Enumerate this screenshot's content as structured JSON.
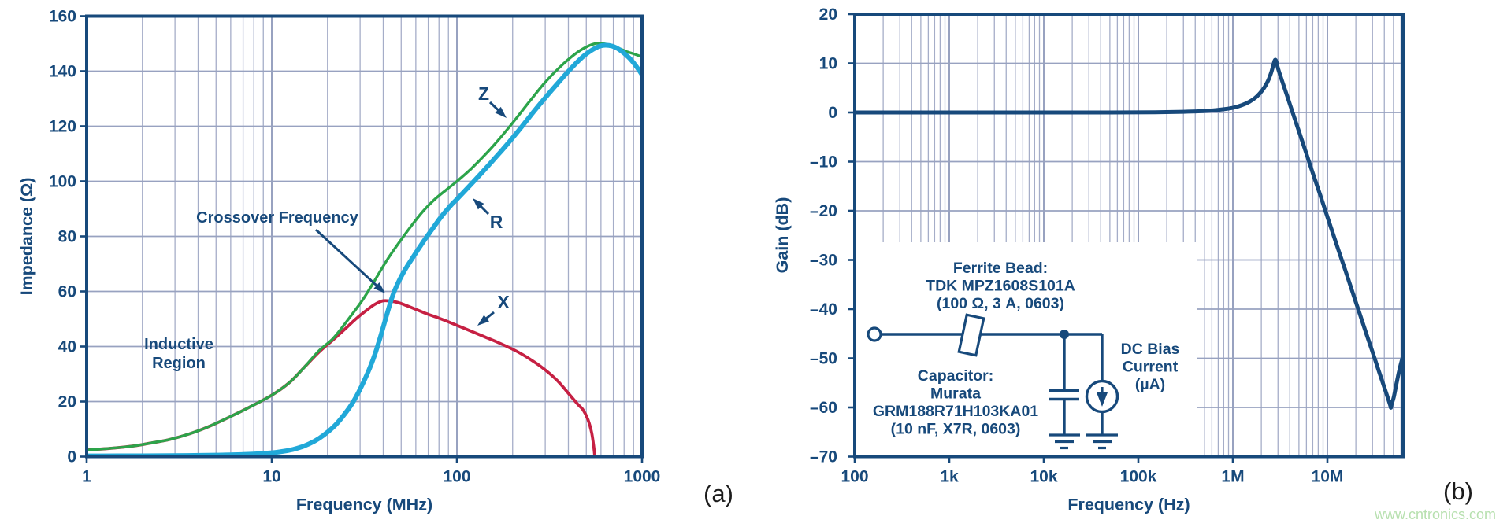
{
  "colors": {
    "navy": "#17497b",
    "grid_minor": "#a5adc8",
    "grid_major": "#98a2c0",
    "green": "#2ca44a",
    "cyan": "#21a8d8",
    "red": "#c62043",
    "caption_black": "#1c1c1c",
    "watermark_green": "#b7e0af"
  },
  "caption_a": "(a)",
  "caption_b": "(b)",
  "watermark": {
    "text": "www.cntronics.com"
  },
  "chart_data": [
    {
      "id": "impedance",
      "type": "line",
      "title": "",
      "xlabel": "Frequency (MHz)",
      "ylabel": "Impedance (Ω)",
      "x_scale": "log",
      "xlim": [
        1,
        1000
      ],
      "ylim": [
        0,
        160
      ],
      "x_tick_labels": [
        "1",
        "10",
        "100",
        "1000"
      ],
      "x_tick_values": [
        1,
        10,
        100,
        1000
      ],
      "y_tick_labels": [
        "0",
        "20",
        "40",
        "60",
        "80",
        "100",
        "120",
        "140",
        "160"
      ],
      "y_tick_values": [
        0,
        20,
        40,
        60,
        80,
        100,
        120,
        140,
        160
      ],
      "grid": true,
      "legend": "inline-arrow-labels",
      "series": [
        {
          "name": "Z",
          "color_key": "green",
          "points": [
            [
              1,
              2.4
            ],
            [
              1.4,
              3.1
            ],
            [
              1.8,
              3.9
            ],
            [
              2.2,
              4.9
            ],
            [
              2.8,
              6.2
            ],
            [
              3.6,
              8.3
            ],
            [
              4.6,
              11
            ],
            [
              6,
              14.6
            ],
            [
              7.5,
              17.8
            ],
            [
              10,
              22.3
            ],
            [
              12.5,
              27
            ],
            [
              15,
              32.5
            ],
            [
              18,
              38.5
            ],
            [
              21.5,
              43
            ],
            [
              26,
              50
            ],
            [
              31,
              57
            ],
            [
              36,
              64
            ],
            [
              42,
              71.5
            ],
            [
              49,
              78
            ],
            [
              57,
              84
            ],
            [
              66,
              89.3
            ],
            [
              76,
              93.5
            ],
            [
              88,
              97
            ],
            [
              100,
              100
            ],
            [
              120,
              104.7
            ],
            [
              145,
              110.3
            ],
            [
              175,
              116.5
            ],
            [
              210,
              123
            ],
            [
              250,
              129.5
            ],
            [
              300,
              136
            ],
            [
              360,
              141.5
            ],
            [
              430,
              146
            ],
            [
              500,
              148.8
            ],
            [
              570,
              150.1
            ],
            [
              640,
              149.8
            ],
            [
              720,
              148.8
            ],
            [
              820,
              147.2
            ],
            [
              910,
              146.2
            ],
            [
              1000,
              145.2
            ]
          ]
        },
        {
          "name": "X",
          "color_key": "red",
          "points": [
            [
              1,
              2.4
            ],
            [
              1.4,
              3.1
            ],
            [
              1.8,
              3.9
            ],
            [
              2.2,
              4.9
            ],
            [
              2.8,
              6.2
            ],
            [
              3.6,
              8.3
            ],
            [
              4.6,
              11
            ],
            [
              6,
              14.6
            ],
            [
              7.5,
              17.8
            ],
            [
              10,
              22.3
            ],
            [
              12.5,
              27
            ],
            [
              15,
              32.5
            ],
            [
              18,
              38
            ],
            [
              21.5,
              42.5
            ],
            [
              25,
              46.5
            ],
            [
              29,
              50.5
            ],
            [
              33,
              53.5
            ],
            [
              36,
              55.3
            ],
            [
              40,
              56.6
            ],
            [
              45,
              56.4
            ],
            [
              50,
              55.6
            ],
            [
              58,
              53.9
            ],
            [
              68,
              52
            ],
            [
              80,
              50.3
            ],
            [
              95,
              48.3
            ],
            [
              115,
              46
            ],
            [
              140,
              43.6
            ],
            [
              170,
              41.2
            ],
            [
              210,
              38.3
            ],
            [
              255,
              34.9
            ],
            [
              300,
              31.5
            ],
            [
              350,
              27.5
            ],
            [
              400,
              23
            ],
            [
              450,
              19
            ],
            [
              480,
              17
            ],
            [
              510,
              13.5
            ],
            [
              535,
              8.5
            ],
            [
              552,
              2
            ],
            [
              560,
              -3
            ]
          ]
        },
        {
          "name": "R",
          "color_key": "cyan",
          "points": [
            [
              1,
              0.25
            ],
            [
              2,
              0.3
            ],
            [
              3.5,
              0.4
            ],
            [
              5,
              0.55
            ],
            [
              7,
              0.8
            ],
            [
              9,
              1.15
            ],
            [
              11,
              1.7
            ],
            [
              13,
              2.6
            ],
            [
              15,
              3.9
            ],
            [
              17,
              5.6
            ],
            [
              19,
              7.7
            ],
            [
              21.5,
              10.7
            ],
            [
              24,
              14.3
            ],
            [
              27,
              19
            ],
            [
              30,
              24.5
            ],
            [
              33,
              30.5
            ],
            [
              36,
              37
            ],
            [
              39,
              44.5
            ],
            [
              42,
              52
            ],
            [
              45,
              58.5
            ],
            [
              48,
              63
            ],
            [
              52,
              67.5
            ],
            [
              58,
              72.5
            ],
            [
              65,
              77.5
            ],
            [
              73,
              82.3
            ],
            [
              82,
              87
            ],
            [
              92,
              91
            ],
            [
              100,
              93.5
            ],
            [
              115,
              97.8
            ],
            [
              135,
              102.8
            ],
            [
              160,
              108.3
            ],
            [
              190,
              114
            ],
            [
              225,
              120
            ],
            [
              265,
              126
            ],
            [
              310,
              131.5
            ],
            [
              360,
              136.5
            ],
            [
              420,
              141.5
            ],
            [
              490,
              145.8
            ],
            [
              560,
              148.4
            ],
            [
              620,
              149.4
            ],
            [
              690,
              149.1
            ],
            [
              760,
              147.7
            ],
            [
              850,
              144.9
            ],
            [
              925,
              142
            ],
            [
              1000,
              138.7
            ]
          ]
        }
      ],
      "annotations": [
        {
          "id": "crossover",
          "text": "Crossover Frequency"
        },
        {
          "id": "inductive",
          "lines": [
            "Inductive",
            "Region"
          ]
        },
        {
          "id": "z-label",
          "text": "Z"
        },
        {
          "id": "r-label",
          "text": "R"
        },
        {
          "id": "x-label",
          "text": "X"
        }
      ]
    },
    {
      "id": "gain",
      "type": "line",
      "title": "",
      "xlabel": "Frequency (Hz)",
      "ylabel": "Gain (dB)",
      "x_scale": "log",
      "xlim": [
        100,
        63100000
      ],
      "ylim": [
        -70,
        20
      ],
      "x_tick_labels": [
        "100",
        "1k",
        "10k",
        "100k",
        "1M",
        "10M"
      ],
      "x_tick_values": [
        100,
        1000,
        10000,
        100000,
        1000000,
        10000000
      ],
      "y_tick_labels": [
        "20",
        "10",
        "0",
        "–10",
        "–20",
        "–30",
        "–40",
        "–50",
        "–60",
        "–70"
      ],
      "y_tick_values": [
        20,
        10,
        0,
        -10,
        -20,
        -30,
        -40,
        -50,
        -60,
        -70
      ],
      "grid": true,
      "series": [
        {
          "name": "Gain",
          "color_key": "navy",
          "points": [
            [
              100,
              0
            ],
            [
              1000,
              0
            ],
            [
              10000,
              0
            ],
            [
              50000,
              0
            ],
            [
              150000,
              0.05
            ],
            [
              300000,
              0.15
            ],
            [
              450000,
              0.25
            ],
            [
              600000,
              0.4
            ],
            [
              800000,
              0.65
            ],
            [
              1000000,
              0.95
            ],
            [
              1250000,
              1.5
            ],
            [
              1500000,
              2.2
            ],
            [
              1800000,
              3.3
            ],
            [
              2100000,
              4.8
            ],
            [
              2350000,
              6.4
            ],
            [
              2550000,
              8.2
            ],
            [
              2700000,
              9.9
            ],
            [
              2800000,
              10.7
            ],
            [
              2900000,
              10.2
            ],
            [
              3000000,
              8.97
            ],
            [
              3300000,
              6.56
            ],
            [
              3700000,
              3.72
            ],
            [
              4100000,
              1.14
            ],
            [
              4600000,
              -1.75
            ],
            [
              5200000,
              -4.8
            ],
            [
              6000000,
              -8.4
            ],
            [
              7000000,
              -12.3
            ],
            [
              8200000,
              -16.2
            ],
            [
              9600000,
              -20.2
            ],
            [
              11300000,
              -24.3
            ],
            [
              13300000,
              -28.4
            ],
            [
              15600000,
              -32.3
            ],
            [
              18400000,
              -36.5
            ],
            [
              21600000,
              -40.5
            ],
            [
              25400000,
              -44.6
            ],
            [
              30000000,
              -48.7
            ],
            [
              35000000,
              -52.6
            ],
            [
              40000000,
              -55.9
            ],
            [
              44000000,
              -58.3
            ],
            [
              46200000,
              -59.6
            ],
            [
              47000000,
              -60.05
            ],
            [
              47900000,
              -59.3
            ],
            [
              50500000,
              -57.8
            ],
            [
              54500000,
              -54.6
            ],
            [
              58500000,
              -51.9
            ],
            [
              61500000,
              -50.3
            ],
            [
              63100000,
              -49.5
            ]
          ]
        }
      ],
      "inset": {
        "ferrite_lines": [
          "Ferrite Bead:",
          "TDK MPZ1608S101A",
          "(100 Ω, 3 A, 0603)"
        ],
        "capacitor_lines": [
          "Capacitor:",
          "Murata",
          "GRM188R71H103KA01",
          "(10 nF, X7R, 0603)"
        ],
        "source_lines": [
          "DC Bias",
          "Current",
          "(µA)"
        ]
      }
    }
  ]
}
